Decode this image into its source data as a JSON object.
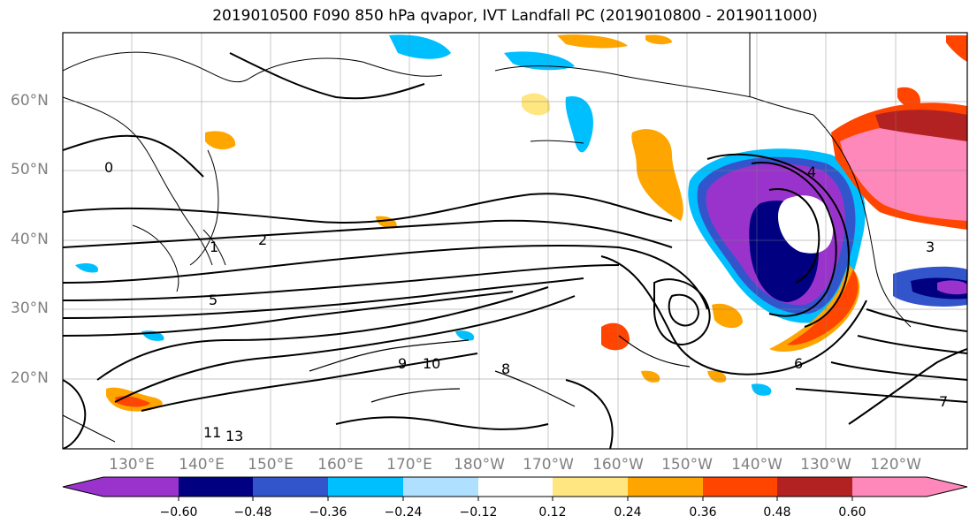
{
  "title": "2019010500 F090 850 hPa qvapor, IVT Landfall PC (2019010800 - 2019011000)",
  "lat_labels": [
    "60°N",
    "50°N",
    "40°N",
    "30°N",
    "20°N"
  ],
  "lon_labels": [
    "130°E",
    "140°E",
    "150°E",
    "160°E",
    "170°E",
    "180°W",
    "170°W",
    "160°W",
    "150°W",
    "140°W",
    "130°W",
    "120°W"
  ],
  "colorbar": {
    "colors": [
      "#9933cc",
      "#000080",
      "#3355cc",
      "#00bfff",
      "#b0e0ff",
      "#ffffff",
      "#ffe680",
      "#ffa500",
      "#ff4500",
      "#b22222",
      "#ff88bb"
    ],
    "tick_labels": [
      "−0.60",
      "−0.48",
      "−0.36",
      "−0.24",
      "−0.12",
      "0.12",
      "0.24",
      "0.36",
      "0.48",
      "0.60"
    ]
  },
  "contour_labels": [
    "0",
    "1",
    "2",
    "3",
    "4",
    "5",
    "6",
    "7",
    "8",
    "9",
    "10",
    "11",
    "13"
  ]
}
